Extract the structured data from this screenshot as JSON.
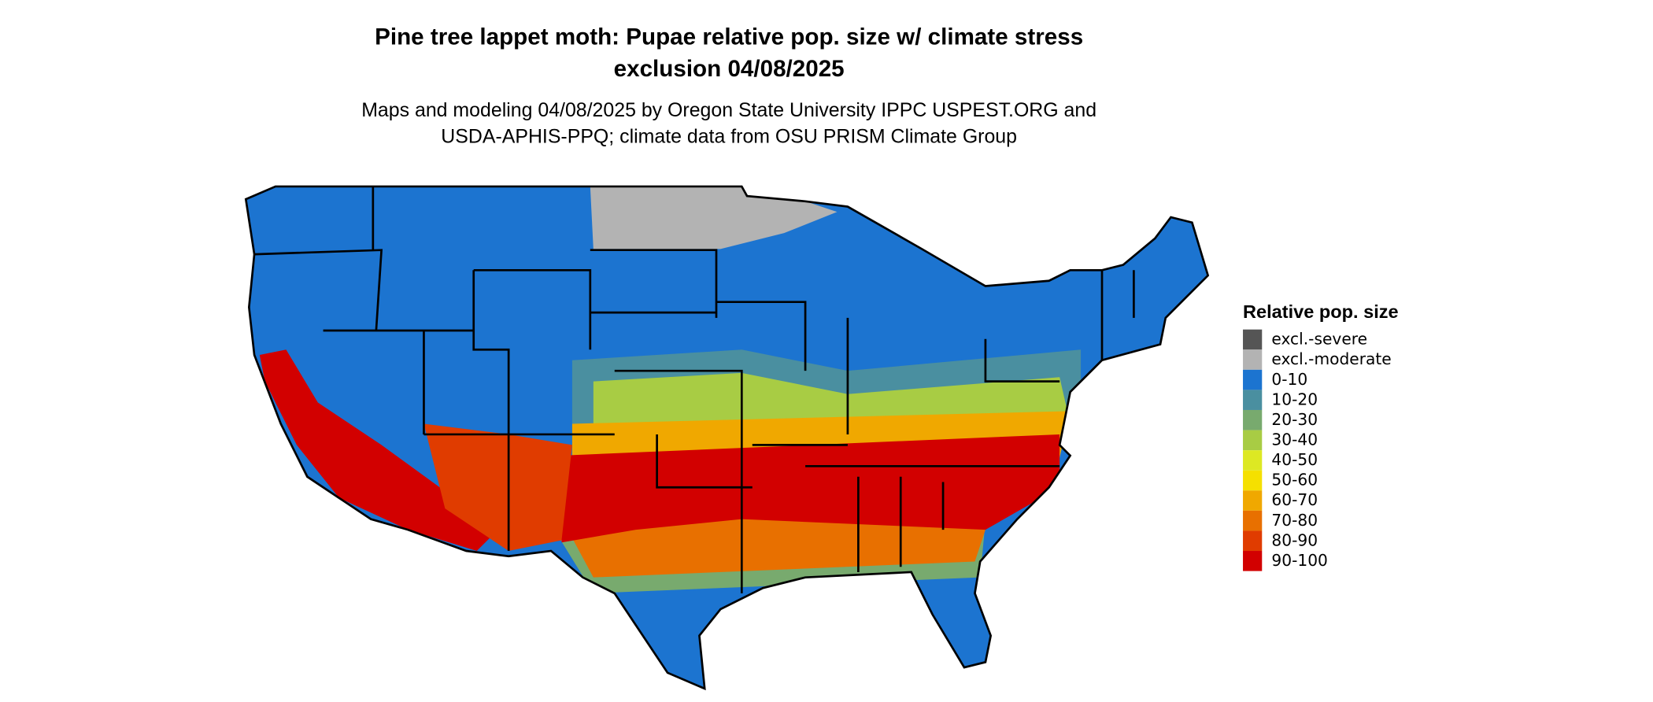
{
  "header": {
    "title_lines": [
      "Pine tree lappet moth: Pupae relative pop. size w/ climate stress",
      "exclusion 04/08/2025"
    ],
    "subtitle_lines": [
      "Maps and modeling 04/08/2025 by Oregon State University IPPC USPEST.ORG and",
      "USDA-APHIS-PPQ; climate data from OSU PRISM Climate Group"
    ]
  },
  "legend": {
    "title": "Relative pop. size",
    "items": [
      {
        "label": "excl.-severe",
        "color": "#555555"
      },
      {
        "label": "excl.-moderate",
        "color": "#b3b3b3"
      },
      {
        "label": "0-10",
        "color": "#1c74d0"
      },
      {
        "label": "10-20",
        "color": "#4a8fa0"
      },
      {
        "label": "20-30",
        "color": "#78aa6e"
      },
      {
        "label": "30-40",
        "color": "#a8cc44"
      },
      {
        "label": "40-50",
        "color": "#dde823"
      },
      {
        "label": "50-60",
        "color": "#f5e000"
      },
      {
        "label": "60-70",
        "color": "#f0a800"
      },
      {
        "label": "70-80",
        "color": "#e87000"
      },
      {
        "label": "80-90",
        "color": "#e03c00"
      },
      {
        "label": "90-100",
        "color": "#d20000"
      }
    ]
  }
}
